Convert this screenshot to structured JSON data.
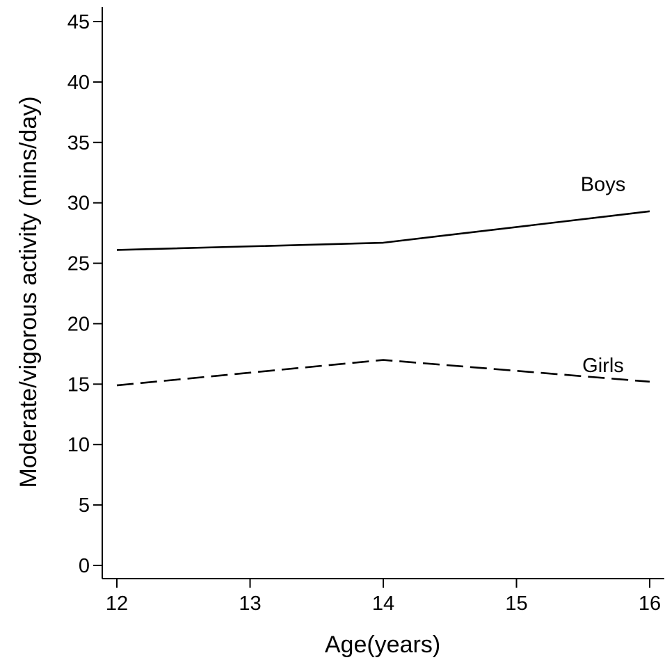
{
  "chart_data": {
    "type": "line",
    "title": "",
    "xlabel": "Age(years)",
    "ylabel": "Moderate/vigorous activity (mins/day)",
    "xlim": [
      12,
      16
    ],
    "ylim": [
      0,
      45
    ],
    "x_ticks": [
      12,
      13,
      14,
      15,
      16
    ],
    "y_ticks": [
      0,
      5,
      10,
      15,
      20,
      25,
      30,
      35,
      40,
      45
    ],
    "grid": false,
    "legend": "none",
    "series": [
      {
        "name": "Boys",
        "line_style": "solid",
        "x": [
          12,
          14,
          16
        ],
        "y": [
          26.1,
          26.7,
          29.3
        ]
      },
      {
        "name": "Girls",
        "line_style": "dashed",
        "x": [
          12,
          14,
          16
        ],
        "y": [
          14.9,
          17.0,
          15.2
        ]
      }
    ],
    "series_label_positions": [
      {
        "series": "Boys",
        "label_x": 15.65,
        "label_y": 31.0
      },
      {
        "series": "Girls",
        "label_x": 15.65,
        "label_y": 16.0
      }
    ]
  }
}
